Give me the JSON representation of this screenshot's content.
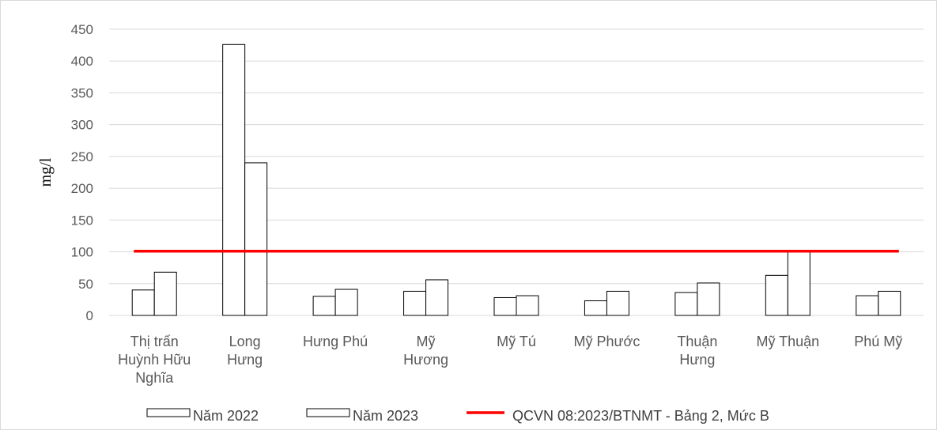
{
  "chart_data": {
    "type": "bar",
    "ylabel": "mg/l",
    "ylim": [
      0,
      450
    ],
    "yticks": [
      0,
      50,
      100,
      150,
      200,
      250,
      300,
      350,
      400,
      450
    ],
    "grid": true,
    "legend_placement": "bottom",
    "categories": [
      [
        "Thị trấn",
        "Huỳnh Hữu",
        "Nghĩa"
      ],
      [
        "Long",
        "Hưng"
      ],
      [
        "Hưng Phú"
      ],
      [
        "Mỹ",
        "Hương"
      ],
      [
        "Mỹ Tú"
      ],
      [
        "Mỹ Phước"
      ],
      [
        "Thuận",
        "Hưng"
      ],
      [
        "Mỹ Thuận"
      ],
      [
        "Phú Mỹ"
      ]
    ],
    "series": [
      {
        "name": "Năm 2022",
        "values": [
          40,
          426,
          30,
          38,
          28,
          23,
          36,
          63,
          31
        ]
      },
      {
        "name": "Năm 2023",
        "values": [
          68,
          240,
          41,
          56,
          31,
          38,
          51,
          100,
          38
        ]
      }
    ],
    "threshold": {
      "name": "QCVN 08:2023/BTNMT - Bảng 2, Mức B",
      "value": 101,
      "color": "#ff0000"
    },
    "colors": {
      "bar_fill": "#ffffff",
      "bar_stroke": "#000000",
      "grid": "#d9d9d9"
    }
  }
}
